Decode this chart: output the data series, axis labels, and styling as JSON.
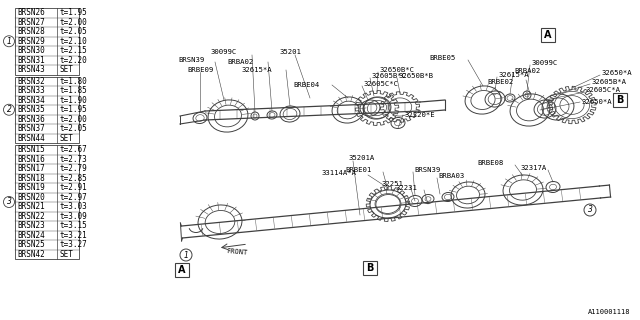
{
  "bg_color": "#ffffff",
  "table_rows_group1": [
    [
      "BRSN26",
      "t=1.95"
    ],
    [
      "BRSN27",
      "t=2.00"
    ],
    [
      "BRSN28",
      "t=2.05"
    ],
    [
      "BRSN29",
      "t=2.10"
    ],
    [
      "BRSN30",
      "t=2.15"
    ],
    [
      "BRSN31",
      "t=2.20"
    ],
    [
      "BRSN43",
      "SET"
    ]
  ],
  "table_rows_group2": [
    [
      "BRSN32",
      "t=1.80"
    ],
    [
      "BRSN33",
      "t=1.85"
    ],
    [
      "BRSN34",
      "t=1.90"
    ],
    [
      "BRSN35",
      "t=1.95"
    ],
    [
      "BRSN36",
      "t=2.00"
    ],
    [
      "BRSN37",
      "t=2.05"
    ],
    [
      "BRSN44",
      "SET"
    ]
  ],
  "table_rows_group3": [
    [
      "BRSN15",
      "t=2.67"
    ],
    [
      "BRSN16",
      "t=2.73"
    ],
    [
      "BRSN17",
      "t=2.79"
    ],
    [
      "BRSN18",
      "t=2.85"
    ],
    [
      "BRSN19",
      "t=2.91"
    ],
    [
      "BRSN20",
      "t=2.97"
    ],
    [
      "BRSN21",
      "t=3.03"
    ],
    [
      "BRSN22",
      "t=3.09"
    ],
    [
      "BRSN23",
      "t=3.15"
    ],
    [
      "BRSN24",
      "t=3.21"
    ],
    [
      "BRSN25",
      "t=3.27"
    ],
    [
      "BRSN42",
      "SET"
    ]
  ],
  "line_color": "#404040",
  "text_color": "#000000",
  "font_size": 5.5,
  "label_font_size": 5.2,
  "diagram_num": "A110001118"
}
